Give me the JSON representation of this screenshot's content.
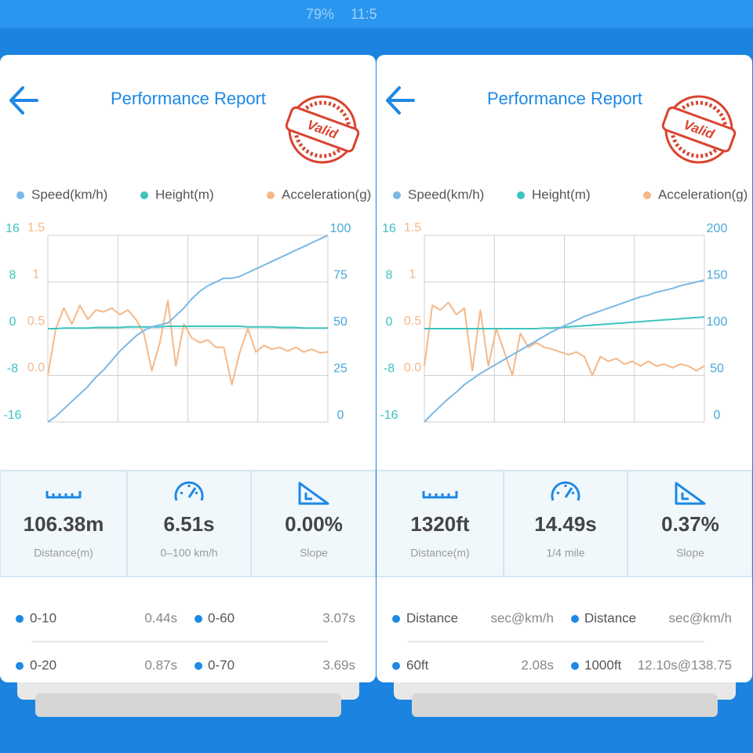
{
  "status_bar": {
    "battery": "79%",
    "time": "11:5"
  },
  "panels": [
    {
      "title": "Performance Report",
      "stamp": "Valid",
      "chart_data": {
        "type": "line",
        "series": [
          {
            "name": "Speed(km/h)",
            "color": "#7ab8e6",
            "axis": "y2",
            "values": [
              0,
              3,
              7,
              11,
              15,
              19,
              24,
              28,
              33,
              38,
              42,
              46,
              49,
              51,
              52,
              53,
              57,
              61,
              66,
              70,
              73,
              75,
              77,
              77,
              78,
              80,
              82,
              84,
              86,
              88,
              90,
              92,
              94,
              96,
              98,
              100
            ]
          },
          {
            "name": "Height(m)",
            "color": "#3cc4c0",
            "axis": "y",
            "values": [
              0,
              0,
              0.1,
              0.1,
              0.1,
              0.1,
              0.2,
              0.2,
              0.2,
              0.2,
              0.3,
              0.3,
              0.3,
              0.3,
              0.3,
              0.4,
              0.4,
              0.4,
              0.4,
              0.4,
              0.4,
              0.4,
              0.4,
              0.4,
              0.4,
              0.3,
              0.3,
              0.3,
              0.3,
              0.2,
              0.2,
              0.2,
              0.1,
              0.1,
              0.1,
              0.1
            ]
          },
          {
            "name": "Acceleration(g)",
            "color": "#f5b888",
            "axis": "y3",
            "values": [
              0,
              0.5,
              0.72,
              0.55,
              0.75,
              0.6,
              0.7,
              0.68,
              0.72,
              0.65,
              0.7,
              0.6,
              0.45,
              0.05,
              0.35,
              0.8,
              0.1,
              0.55,
              0.4,
              0.35,
              0.38,
              0.3,
              0.3,
              -0.1,
              0.25,
              0.5,
              0.25,
              0.32,
              0.28,
              0.3,
              0.26,
              0.3,
              0.25,
              0.28,
              0.24,
              0.25
            ]
          }
        ],
        "ylim": [
          -16,
          16
        ],
        "yticks": [
          16,
          8,
          0,
          -8,
          -16
        ],
        "y3lim": [
          -0.5,
          1.5
        ],
        "y3ticks": [
          1.5,
          1,
          0.5,
          {
            "value": 0,
            "label": "0.0"
          }
        ],
        "y2lim": [
          0,
          100
        ],
        "y2ticks": [
          100,
          75,
          50,
          25,
          0
        ],
        "grid": true
      },
      "stats": [
        {
          "value": "106.38m",
          "label": "Distance(m)"
        },
        {
          "value": "6.51s",
          "label": "0–100 km/h"
        },
        {
          "value": "0.00%",
          "label": "Slope"
        }
      ],
      "splits": [
        [
          "0-10",
          "0.44s",
          "0-60",
          "3.07s"
        ],
        [
          "0-20",
          "0.87s",
          "0-70",
          "3.69s"
        ]
      ]
    },
    {
      "title": "Performance Report",
      "stamp": "Valid",
      "chart_data": {
        "type": "line",
        "series": [
          {
            "name": "Speed(km/h)",
            "color": "#7ab8e6",
            "axis": "y2",
            "values": [
              0,
              9,
              17,
              25,
              32,
              40,
              46,
              52,
              57,
              62,
              67,
              72,
              77,
              82,
              87,
              92,
              97,
              101,
              105,
              109,
              113,
              116,
              119,
              122,
              125,
              128,
              131,
              134,
              136,
              139,
              141,
              143,
              146,
              148,
              150,
              152
            ]
          },
          {
            "name": "Height(m)",
            "color": "#3cc4c0",
            "axis": "y",
            "values": [
              0,
              0,
              0,
              0,
              0,
              0,
              0,
              0,
              0,
              0,
              0,
              0,
              0,
              0,
              0,
              0.1,
              0.1,
              0.2,
              0.3,
              0.4,
              0.5,
              0.6,
              0.7,
              0.8,
              0.9,
              1.0,
              1.1,
              1.2,
              1.3,
              1.4,
              1.5,
              1.6,
              1.7,
              1.8,
              1.9,
              2.0
            ]
          },
          {
            "name": "Acceleration(g)",
            "color": "#f5b888",
            "axis": "y3",
            "values": [
              0.1,
              0.75,
              0.7,
              0.78,
              0.65,
              0.72,
              0.05,
              0.7,
              0.1,
              0.5,
              0.25,
              0,
              0.45,
              0.3,
              0.35,
              0.3,
              0.28,
              0.25,
              0.22,
              0.25,
              0.2,
              0,
              0.2,
              0.15,
              0.18,
              0.12,
              0.15,
              0.1,
              0.15,
              0.1,
              0.12,
              0.08,
              0.12,
              0.1,
              0.05,
              0.1
            ]
          }
        ],
        "ylim": [
          -16,
          16
        ],
        "yticks": [
          16,
          8,
          0,
          -8,
          -16
        ],
        "y3lim": [
          -0.5,
          1.5
        ],
        "y3ticks": [
          1.5,
          1,
          0.5,
          {
            "value": 0,
            "label": "0.0"
          }
        ],
        "y2lim": [
          0,
          200
        ],
        "y2ticks": [
          200,
          150,
          100,
          50,
          0
        ],
        "grid": true
      },
      "stats": [
        {
          "value": "1320ft",
          "label": "Distance(m)"
        },
        {
          "value": "14.49s",
          "label": "1/4 mile"
        },
        {
          "value": "0.37%",
          "label": "Slope"
        }
      ],
      "splits": [
        [
          "Distance",
          "sec@km/h",
          "Distance",
          "sec@km/h"
        ],
        [
          "60ft",
          "2.08s",
          "1000ft",
          "12.10s@138.75"
        ]
      ]
    }
  ]
}
